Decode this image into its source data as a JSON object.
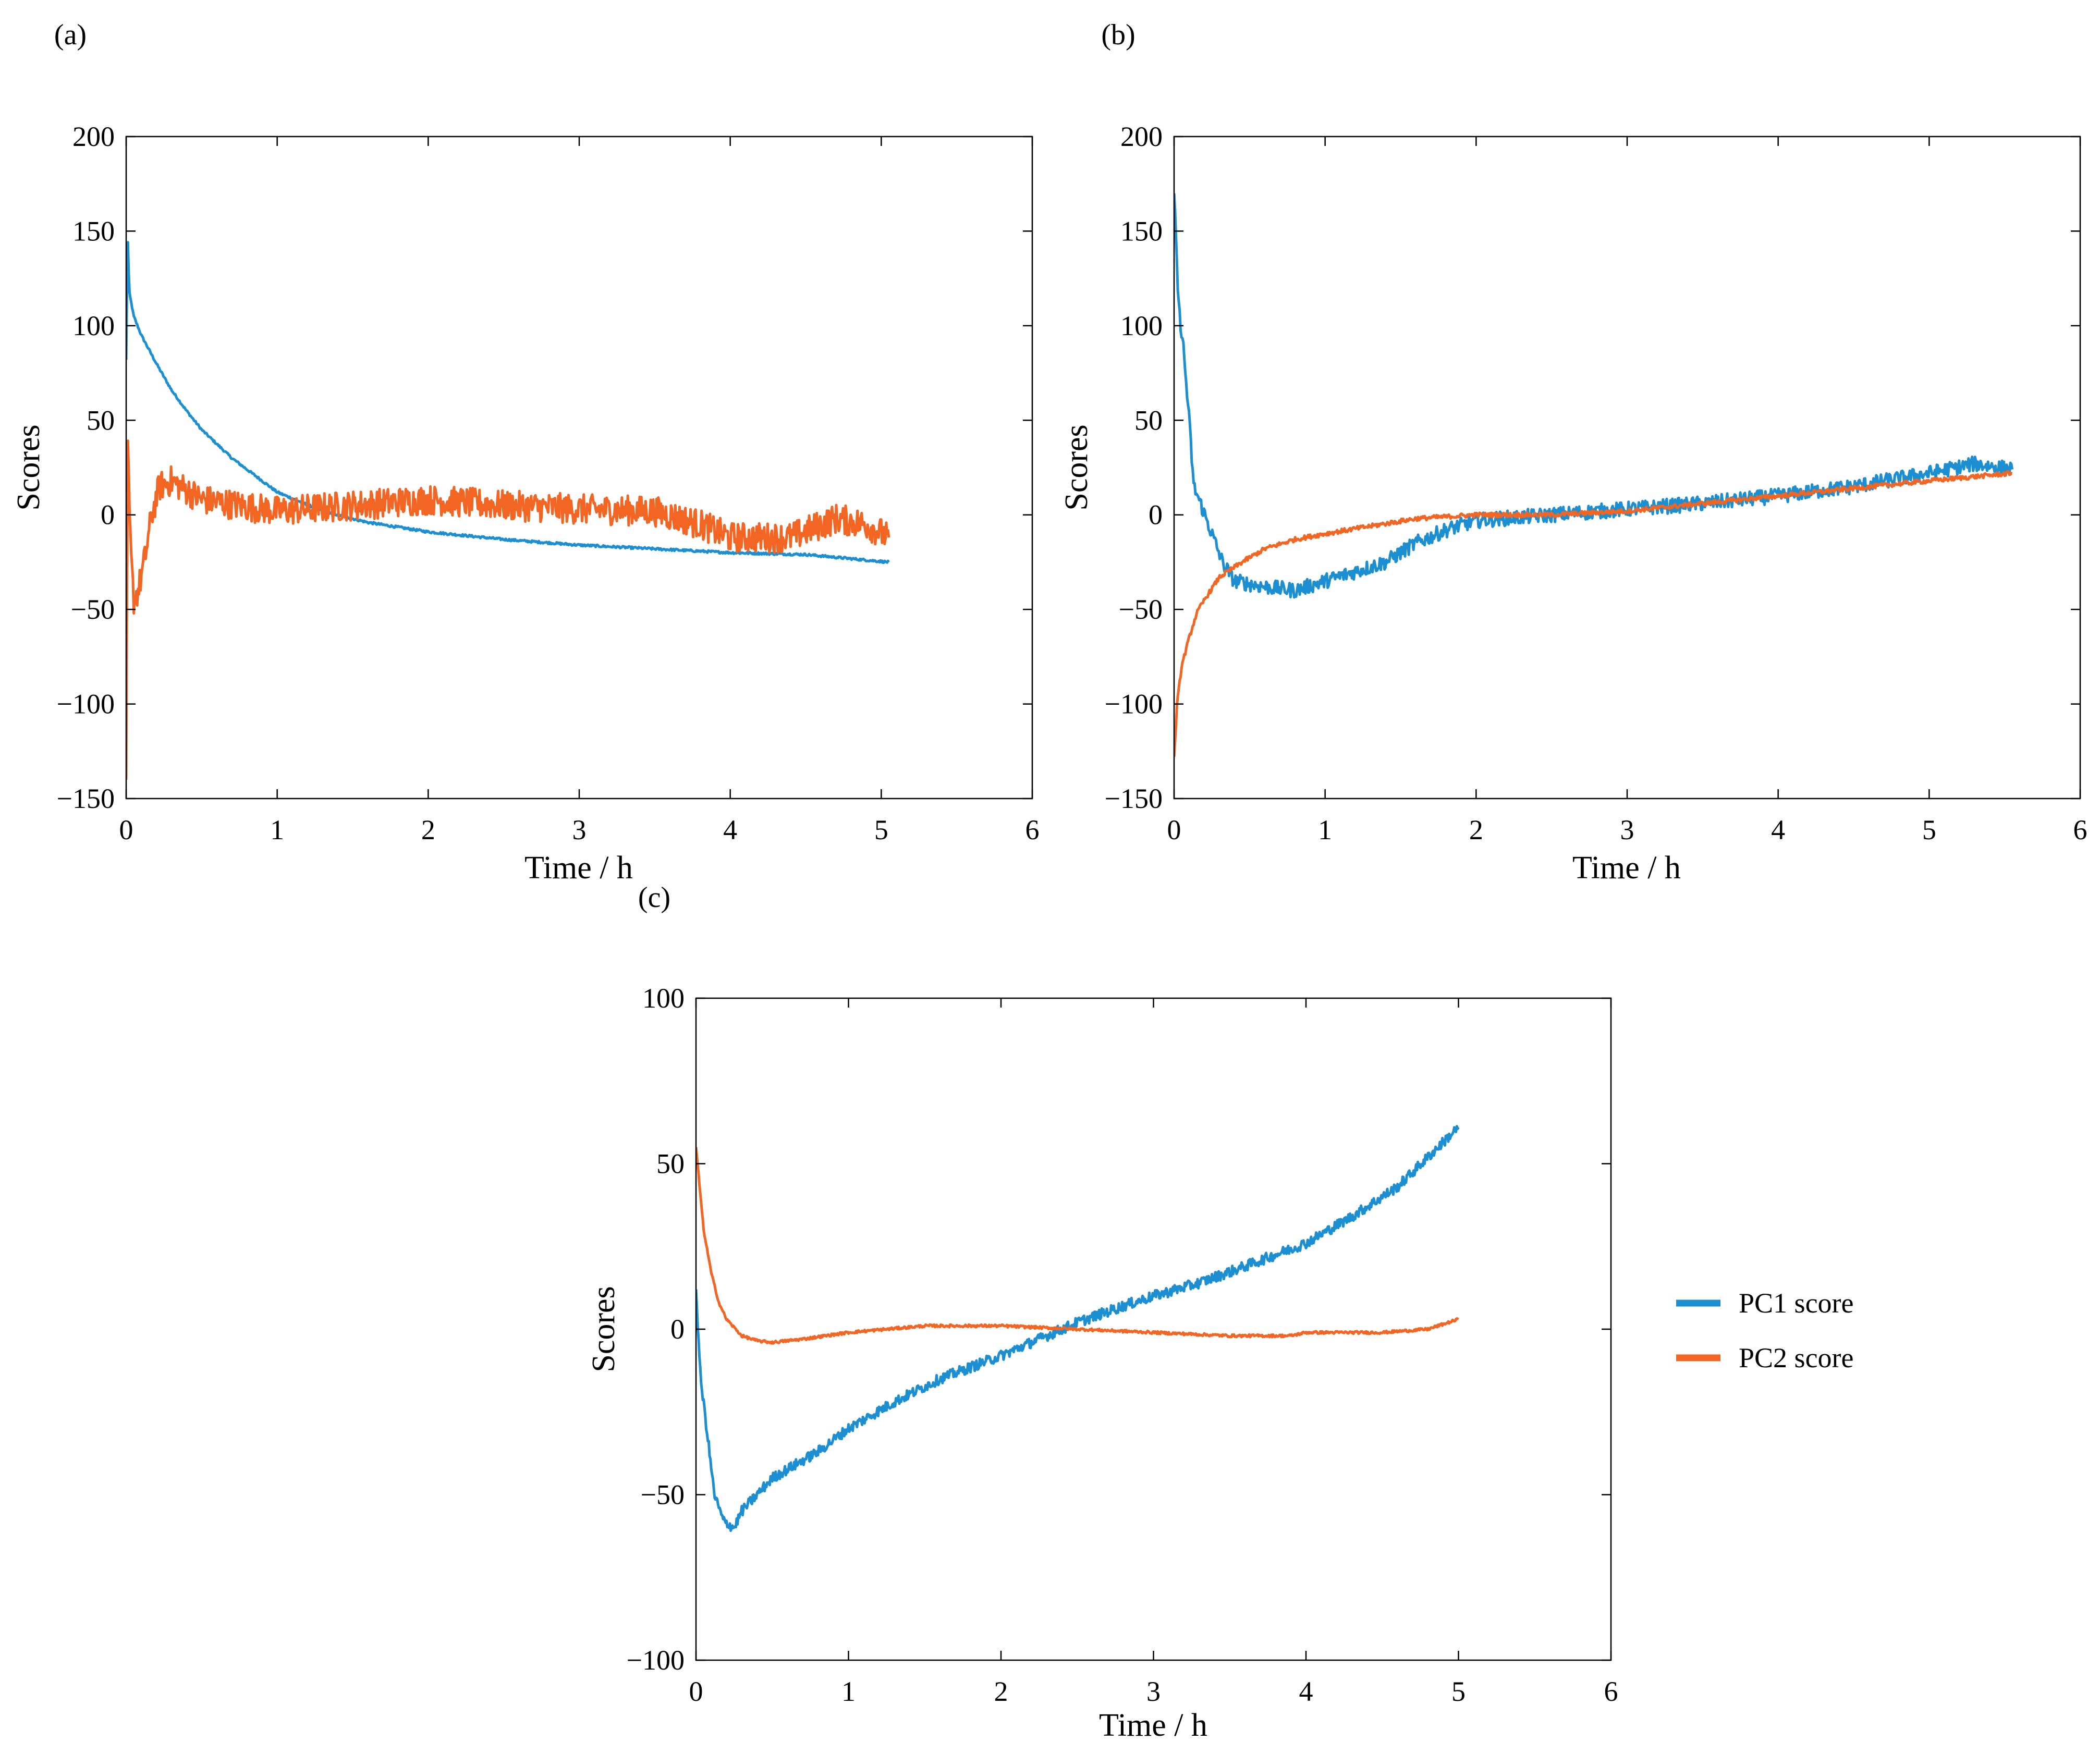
{
  "legend": {
    "entries": [
      {
        "label": "PC1 score",
        "color": "#1b8fd2"
      },
      {
        "label": "PC2 score",
        "color": "#f26522"
      }
    ]
  },
  "chart_data": [
    {
      "panel_label": "(a)",
      "type": "line",
      "xlabel": "Time / h",
      "ylabel": "Scores",
      "xlim": [
        0,
        6
      ],
      "ylim": [
        -150,
        200
      ],
      "xticks": [
        0,
        1,
        2,
        3,
        4,
        5,
        6
      ],
      "yticks": [
        -150,
        -100,
        -50,
        0,
        50,
        100,
        150,
        200
      ],
      "grid": false,
      "series": [
        {
          "name": "PC1 score",
          "color": "#1b8fd2",
          "noise": 0.6,
          "x": [
            0,
            0.01,
            0.02,
            0.05,
            0.1,
            0.2,
            0.3,
            0.4,
            0.5,
            0.7,
            1.0,
            1.3,
            1.6,
            2.0,
            2.5,
            3.0,
            3.5,
            4.0,
            4.5,
            5.05
          ],
          "y": [
            82,
            148,
            118,
            105,
            95,
            80,
            66,
            55,
            45,
            30,
            12,
            2,
            -4,
            -9,
            -13,
            -16,
            -18,
            -20,
            -21,
            -25
          ]
        },
        {
          "name": "PC2 score",
          "color": "#f26522",
          "noise": 8,
          "x": [
            0,
            0.01,
            0.03,
            0.05,
            0.08,
            0.12,
            0.17,
            0.22,
            0.3,
            0.5,
            1.0,
            1.5,
            2.0,
            2.5,
            3.0,
            3.5,
            3.8,
            4.0,
            4.4,
            4.7,
            4.9,
            5.05
          ],
          "y": [
            -140,
            35,
            -20,
            -45,
            -40,
            -25,
            0,
            15,
            18,
            8,
            2,
            5,
            8,
            5,
            3,
            2,
            -5,
            -12,
            -12,
            -2,
            -5,
            -12
          ]
        }
      ]
    },
    {
      "panel_label": "(b)",
      "type": "line",
      "xlabel": "Time / h",
      "ylabel": "Scores",
      "xlim": [
        0,
        6
      ],
      "ylim": [
        -150,
        200
      ],
      "xticks": [
        0,
        1,
        2,
        3,
        4,
        5,
        6
      ],
      "yticks": [
        -150,
        -100,
        -50,
        0,
        50,
        100,
        150,
        200
      ],
      "grid": false,
      "series": [
        {
          "name": "PC1 score",
          "color": "#1b8fd2",
          "noise": 4,
          "x": [
            0,
            0.03,
            0.06,
            0.1,
            0.13,
            0.18,
            0.25,
            0.32,
            0.4,
            0.6,
            0.8,
            1.0,
            1.2,
            1.4,
            1.6,
            1.8,
            2.0,
            2.5,
            3.0,
            3.5,
            4.0,
            4.5,
            5.0,
            5.3,
            5.55
          ],
          "y": [
            170,
            110,
            90,
            50,
            15,
            5,
            -10,
            -25,
            -35,
            -38,
            -40,
            -35,
            -30,
            -25,
            -15,
            -8,
            -3,
            0,
            3,
            6,
            10,
            15,
            22,
            27,
            24
          ]
        },
        {
          "name": "PC2 score",
          "color": "#f26522",
          "noise": 1.2,
          "x": [
            0,
            0.02,
            0.05,
            0.1,
            0.15,
            0.2,
            0.3,
            0.45,
            0.6,
            0.8,
            1.0,
            1.3,
            1.6,
            2.0,
            2.5,
            3.0,
            3.5,
            4.0,
            4.5,
            5.0,
            5.55
          ],
          "y": [
            -128,
            -100,
            -80,
            -65,
            -52,
            -45,
            -33,
            -25,
            -18,
            -13,
            -10,
            -6,
            -2,
            0,
            0,
            2,
            6,
            10,
            14,
            18,
            22
          ]
        }
      ]
    },
    {
      "panel_label": "(c)",
      "type": "line",
      "xlabel": "Time / h",
      "ylabel": "Scores",
      "xlim": [
        0,
        6
      ],
      "ylim": [
        -100,
        100
      ],
      "xticks": [
        0,
        1,
        2,
        3,
        4,
        5,
        6
      ],
      "yticks": [
        -100,
        -50,
        0,
        50,
        100
      ],
      "grid": false,
      "series": [
        {
          "name": "PC1 score",
          "color": "#1b8fd2",
          "noise": 1.6,
          "x": [
            0,
            0.03,
            0.07,
            0.12,
            0.18,
            0.25,
            0.3,
            0.5,
            0.8,
            1.0,
            1.3,
            1.6,
            2.0,
            2.3,
            2.5,
            2.8,
            3.0,
            3.3,
            3.6,
            4.0,
            4.3,
            4.6,
            4.8,
            5.0
          ],
          "y": [
            12,
            -15,
            -30,
            -50,
            -58,
            -60,
            -55,
            -45,
            -37,
            -30,
            -22,
            -15,
            -8,
            -2,
            2,
            7,
            10,
            14,
            19,
            26,
            34,
            43,
            52,
            61
          ]
        },
        {
          "name": "PC2 score",
          "color": "#f26522",
          "noise": 0.4,
          "x": [
            0,
            0.05,
            0.1,
            0.15,
            0.2,
            0.3,
            0.4,
            0.5,
            0.7,
            1.0,
            1.5,
            2.0,
            2.5,
            3.0,
            3.5,
            3.9,
            4.0,
            4.5,
            4.8,
            5.0
          ],
          "y": [
            55,
            30,
            17,
            8,
            3,
            -2,
            -3.5,
            -4,
            -3,
            -1,
            1,
            1,
            0,
            -1,
            -2,
            -2,
            -1,
            -1,
            0,
            3
          ]
        }
      ]
    }
  ]
}
